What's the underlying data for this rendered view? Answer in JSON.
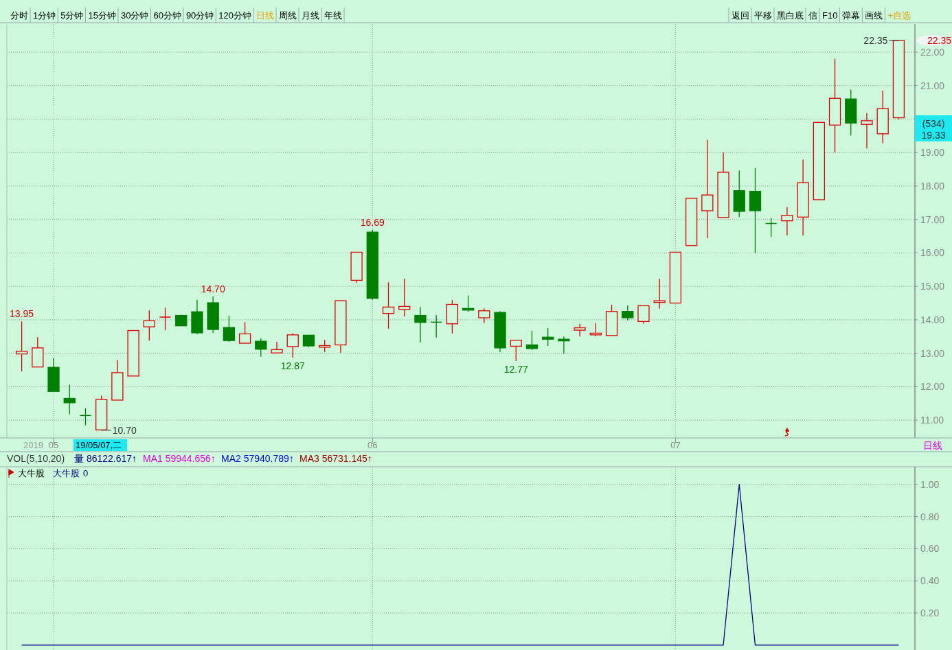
{
  "chart_data": [
    {
      "type": "candlestick",
      "grid": true,
      "categories": [
        null,
        null,
        "05",
        null,
        null,
        null,
        null,
        null,
        null,
        null,
        null,
        null,
        null,
        null,
        null,
        null,
        null,
        null,
        null,
        null,
        null,
        null,
        "06",
        null,
        null,
        null,
        null,
        null,
        null,
        null,
        null,
        null,
        null,
        null,
        null,
        null,
        null,
        null,
        null,
        null,
        null,
        "07",
        null,
        null,
        null,
        null,
        null,
        null,
        null,
        null,
        null,
        null,
        null,
        null,
        null,
        null
      ],
      "ohlc": [
        [
          12.98,
          13.95,
          12.46,
          13.06
        ],
        [
          12.59,
          13.48,
          12.59,
          13.16
        ],
        [
          12.58,
          12.85,
          11.86,
          11.86
        ],
        [
          11.65,
          12.06,
          11.18,
          11.52
        ],
        [
          11.14,
          11.36,
          10.85,
          11.14
        ],
        [
          10.71,
          11.73,
          10.7,
          11.62
        ],
        [
          11.6,
          12.8,
          11.6,
          12.42
        ],
        [
          12.32,
          13.68,
          12.32,
          13.68
        ],
        [
          13.79,
          14.28,
          13.38,
          13.97
        ],
        [
          14.08,
          14.36,
          13.69,
          14.08
        ],
        [
          14.13,
          14.15,
          13.82,
          13.82
        ],
        [
          14.24,
          14.6,
          13.57,
          13.61
        ],
        [
          14.51,
          14.7,
          13.61,
          13.71
        ],
        [
          13.77,
          14.12,
          13.34,
          13.38
        ],
        [
          13.3,
          13.93,
          13.3,
          13.58
        ],
        [
          13.36,
          13.45,
          12.9,
          13.12
        ],
        [
          13.01,
          13.34,
          13.01,
          13.11
        ],
        [
          13.2,
          13.6,
          12.87,
          13.55
        ],
        [
          13.54,
          13.54,
          13.18,
          13.22
        ],
        [
          13.18,
          13.4,
          13.04,
          13.23
        ],
        [
          13.25,
          14.57,
          13.01,
          14.57
        ],
        [
          15.18,
          16.02,
          15.1,
          16.02
        ],
        [
          16.62,
          16.69,
          14.6,
          14.64
        ],
        [
          14.19,
          15.12,
          13.73,
          14.38
        ],
        [
          14.31,
          15.23,
          14.1,
          14.4
        ],
        [
          14.13,
          14.38,
          13.32,
          13.92
        ],
        [
          13.93,
          14.14,
          13.47,
          13.93
        ],
        [
          13.88,
          14.59,
          13.59,
          14.46
        ],
        [
          14.34,
          14.73,
          14.24,
          14.29
        ],
        [
          14.06,
          14.34,
          13.9,
          14.27
        ],
        [
          14.22,
          14.26,
          13.04,
          13.16
        ],
        [
          13.21,
          13.39,
          12.77,
          13.39
        ],
        [
          13.25,
          13.67,
          13.1,
          13.14
        ],
        [
          13.48,
          13.75,
          13.22,
          13.42
        ],
        [
          13.42,
          13.5,
          12.99,
          13.37
        ],
        [
          13.69,
          13.88,
          13.5,
          13.76
        ],
        [
          13.55,
          13.9,
          13.51,
          13.6
        ],
        [
          13.53,
          14.45,
          13.53,
          14.25
        ],
        [
          14.25,
          14.43,
          13.98,
          14.06
        ],
        [
          13.95,
          14.42,
          13.88,
          14.42
        ],
        [
          14.52,
          15.23,
          14.33,
          14.57
        ],
        [
          14.5,
          16.02,
          14.5,
          16.02
        ],
        [
          16.22,
          17.63,
          16.22,
          17.63
        ],
        [
          17.26,
          19.38,
          16.44,
          17.73
        ],
        [
          17.06,
          19.0,
          17.06,
          18.41
        ],
        [
          17.86,
          18.46,
          17.07,
          17.24
        ],
        [
          17.84,
          18.54,
          15.99,
          17.26
        ],
        [
          16.88,
          17.04,
          16.48,
          16.88
        ],
        [
          16.96,
          17.37,
          16.52,
          17.12
        ],
        [
          17.07,
          18.79,
          16.52,
          18.1
        ],
        [
          17.59,
          19.9,
          17.59,
          19.9
        ],
        [
          19.82,
          21.8,
          19.0,
          20.62
        ],
        [
          20.6,
          20.88,
          19.51,
          19.88
        ],
        [
          19.84,
          20.18,
          19.12,
          19.95
        ],
        [
          19.56,
          20.85,
          19.28,
          20.31
        ],
        [
          20.04,
          22.35,
          19.99,
          22.35
        ]
      ],
      "colors": [
        "#e00000",
        "#e00000",
        "#008000",
        "#008000",
        "#008000",
        "#e00000",
        "#e00000",
        "#e00000",
        "#e00000",
        "#e00000",
        "#008000",
        "#008000",
        "#008000",
        "#008000",
        "#e00000",
        "#008000",
        "#e00000",
        "#e00000",
        "#008000",
        "#e00000",
        "#e00000",
        "#e00000",
        "#008000",
        "#e00000",
        "#e00000",
        "#008000",
        "#008000",
        "#e00000",
        "#008000",
        "#e00000",
        "#008000",
        "#e00000",
        "#008000",
        "#008000",
        "#008000",
        "#e00000",
        "#e00000",
        "#e00000",
        "#008000",
        "#e00000",
        "#e00000",
        "#e00000",
        "#e00000",
        "#e00000",
        "#e00000",
        "#008000",
        "#008000",
        "#008000",
        "#e00000",
        "#e00000",
        "#e00000",
        "#e00000",
        "#008000",
        "#e00000",
        "#e00000",
        "#e00000"
      ],
      "ylim": [
        10.47,
        22.84
      ],
      "yticks": [
        {
          "value": 11,
          "label": "11.00"
        },
        {
          "value": 12,
          "label": "12.00"
        },
        {
          "value": 13,
          "label": "13.00"
        },
        {
          "value": 14,
          "label": "14.00"
        },
        {
          "value": 15,
          "label": "15.00"
        },
        {
          "value": 16,
          "label": "16.00"
        },
        {
          "value": 17,
          "label": "17.00"
        },
        {
          "value": 18,
          "label": "18.00"
        },
        {
          "value": 19,
          "label": "19.00"
        },
        {
          "value": 20,
          "label": null
        },
        {
          "value": 21,
          "label": "21.00"
        },
        {
          "value": 22,
          "label": "22.00"
        }
      ],
      "annotations": [
        {
          "text": "13.95",
          "y": 13.95
        },
        {
          "text": "14.70",
          "y": 14.7
        },
        {
          "text": "12.87",
          "y": 12.87
        },
        {
          "text": "16.69",
          "y": 16.69
        },
        {
          "text": "12.77",
          "y": 12.77
        },
        "10.70",
        "22.35",
        "22.35",
        "19.33",
        "(534)",
        "2019",
        "19/05/07,二",
        "日线",
        "分时",
        "1分钟",
        "5分钟",
        "15分钟",
        "30分钟",
        "60分钟",
        "90分钟",
        "120分钟",
        "日线",
        "周线",
        "月线",
        "年线",
        "返回",
        "平移",
        "黑白底",
        "信",
        "F10",
        "弹幕",
        "画线",
        "+自选"
      ]
    },
    {
      "type": "line",
      "grid": true,
      "legend": "top left",
      "title": "大牛股",
      "categories": [
        null,
        null,
        null,
        null,
        null,
        null,
        null,
        null,
        null,
        null,
        null,
        null,
        null,
        null,
        null,
        null,
        null,
        null,
        null,
        null,
        null,
        null,
        null,
        null,
        null,
        null,
        null,
        null,
        null,
        null,
        null,
        null,
        null,
        null,
        null,
        null,
        null,
        null,
        null,
        null,
        null,
        null,
        null,
        null,
        null,
        null,
        null,
        null,
        null,
        null,
        null,
        null,
        null,
        null,
        null,
        null
      ],
      "series": [
        {
          "name": "大牛股",
          "color": "#000080",
          "values": [
            0,
            0,
            0,
            0,
            0,
            0,
            0,
            0,
            0,
            0,
            0,
            0,
            0,
            0,
            0,
            0,
            0,
            0,
            0,
            0,
            0,
            0,
            0,
            0,
            0,
            0,
            0,
            0,
            0,
            0,
            0,
            0,
            0,
            0,
            0,
            0,
            0,
            0,
            0,
            0,
            0,
            0,
            0,
            0,
            0,
            1,
            0,
            0,
            0,
            0,
            0,
            0,
            0,
            0,
            0,
            0
          ]
        }
      ],
      "ylim": [
        -0.03,
        1.11
      ],
      "yticks": [
        {
          "value": 0.2,
          "label": "0.20"
        },
        {
          "value": 0.4,
          "label": "0.40"
        },
        {
          "value": 0.6,
          "label": "0.60"
        },
        {
          "value": 0.8,
          "label": "0.80"
        },
        {
          "value": 1,
          "label": "1.00"
        }
      ],
      "annotations": [
        "VOL(5,10,20)",
        "量 86122.617↑",
        "MA1 59944.656↑",
        "MA2 57940.789↑",
        "MA3 56731.145↑",
        "0"
      ]
    }
  ]
}
